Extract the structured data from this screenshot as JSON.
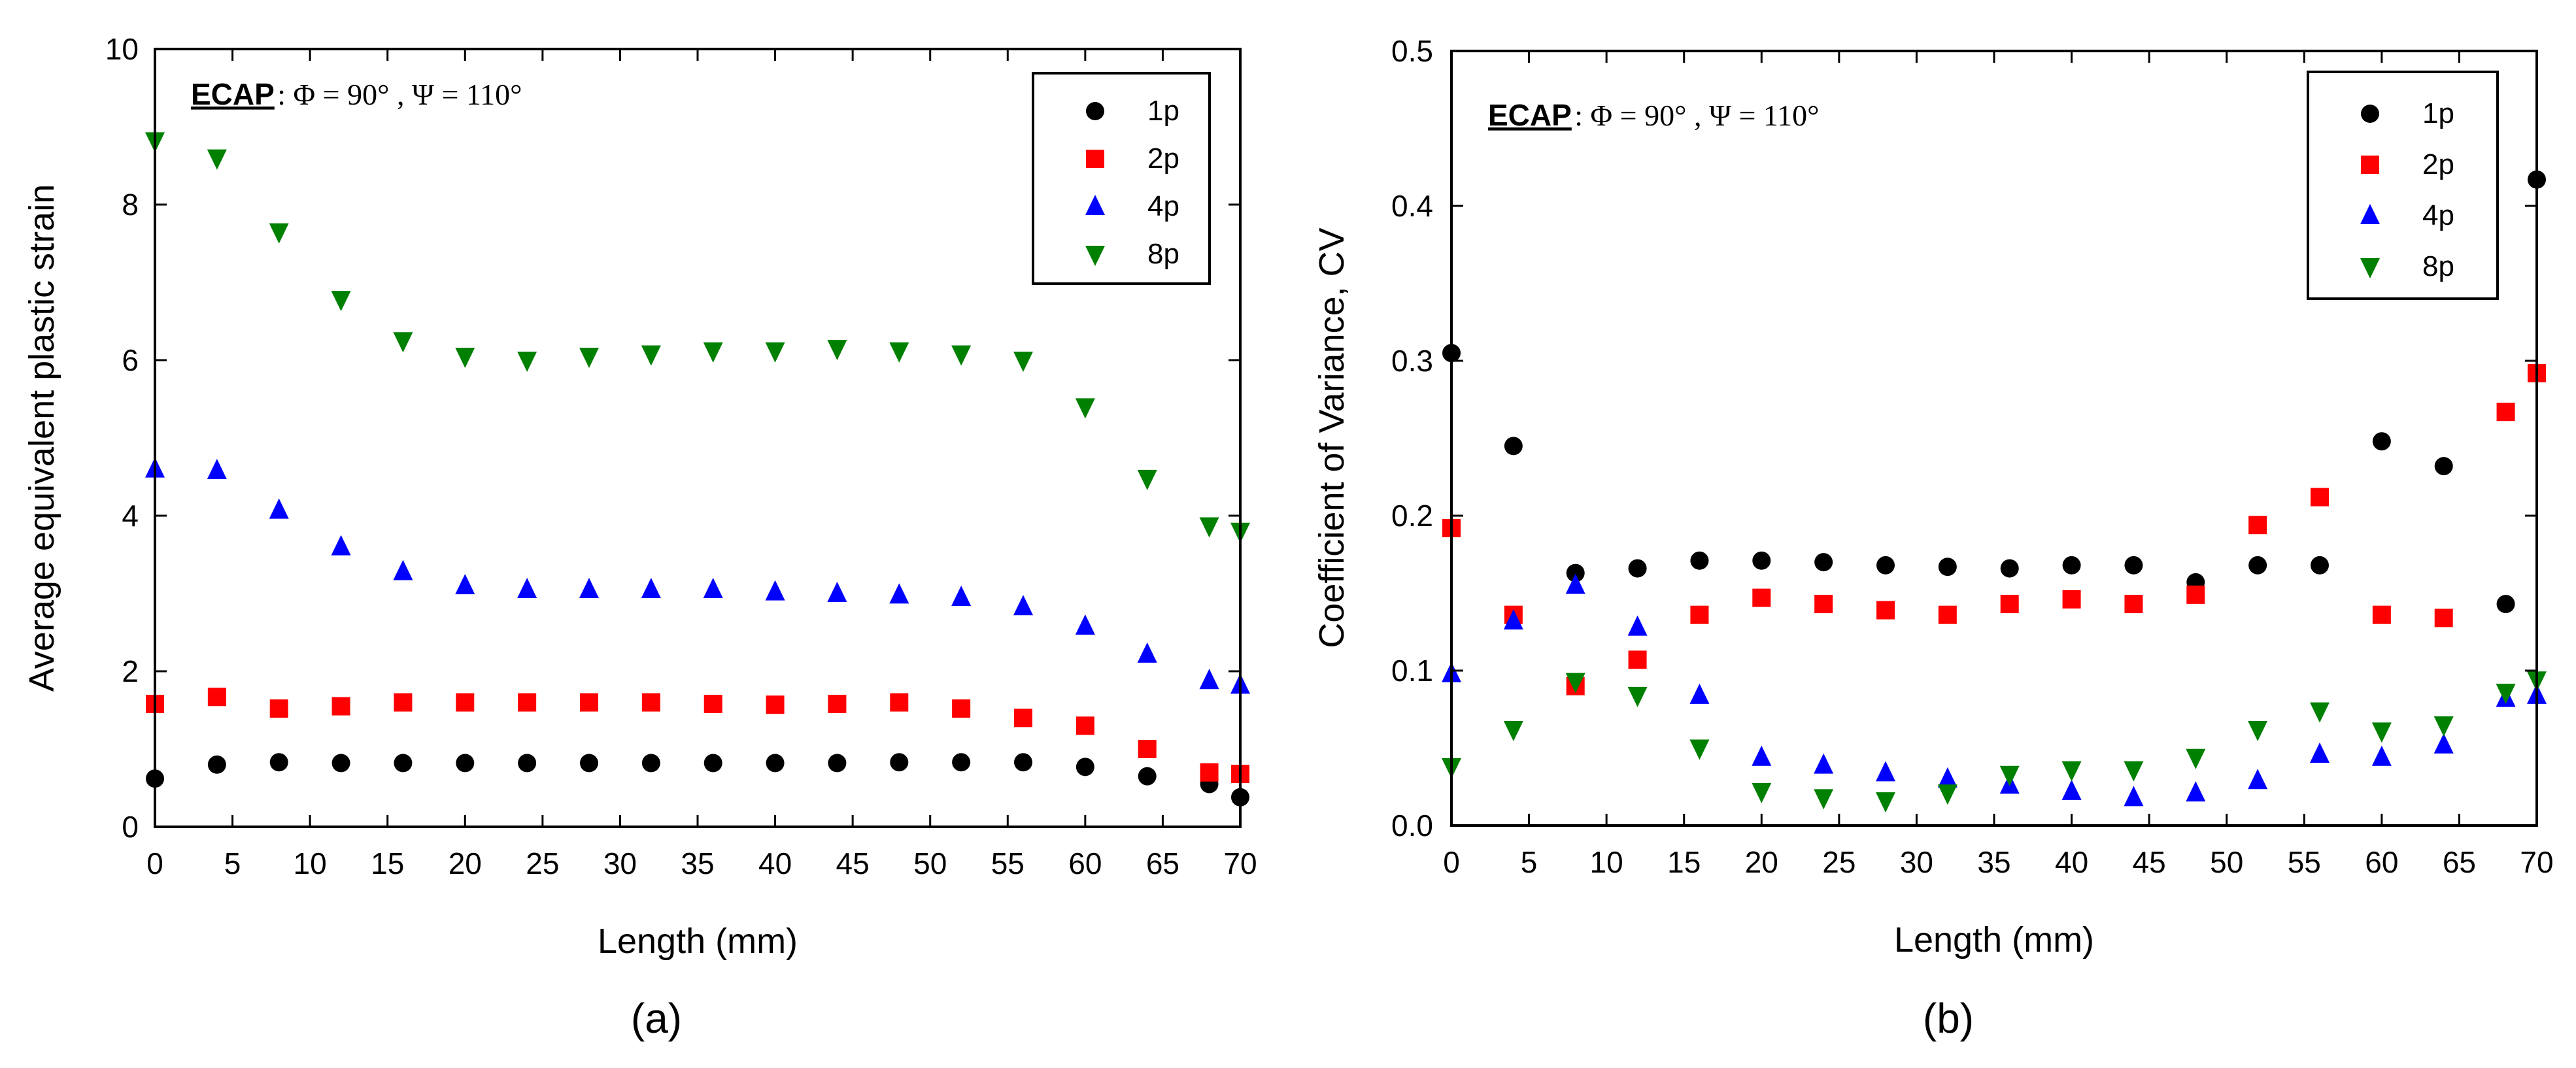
{
  "chart_data": [
    {
      "type": "scatter",
      "panel_label": "(a)",
      "title": "",
      "annotation": {
        "bold": "ECAP",
        "rest": ": Φ = 90° , Ψ = 110°"
      },
      "xlabel": "Length (mm)",
      "ylabel": "Average equivalent plastic strain",
      "xlim": [
        0,
        70
      ],
      "ylim": [
        0,
        10
      ],
      "xticks": [
        0,
        5,
        10,
        15,
        20,
        25,
        30,
        35,
        40,
        45,
        50,
        55,
        60,
        65,
        70
      ],
      "yticks": [
        0,
        2,
        4,
        6,
        8,
        10
      ],
      "legend_position": "top-right",
      "x": [
        0,
        4,
        8,
        12,
        16,
        20,
        24,
        28,
        32,
        36,
        40,
        44,
        48,
        52,
        56,
        60,
        64,
        68,
        70
      ],
      "series": [
        {
          "name": "1p",
          "marker": "circle",
          "color": "#000000",
          "values": [
            0.62,
            0.8,
            0.83,
            0.82,
            0.82,
            0.82,
            0.82,
            0.82,
            0.82,
            0.82,
            0.82,
            0.82,
            0.83,
            0.83,
            0.83,
            0.77,
            0.65,
            0.55,
            0.38
          ]
        },
        {
          "name": "2p",
          "marker": "square",
          "color": "#ff0000",
          "values": [
            1.58,
            1.67,
            1.52,
            1.55,
            1.6,
            1.6,
            1.6,
            1.6,
            1.6,
            1.58,
            1.57,
            1.58,
            1.6,
            1.52,
            1.4,
            1.3,
            1.0,
            0.7,
            0.68
          ]
        },
        {
          "name": "4p",
          "marker": "triangle-up",
          "color": "#0000ff",
          "values": [
            4.6,
            4.58,
            4.07,
            3.6,
            3.28,
            3.1,
            3.05,
            3.05,
            3.05,
            3.05,
            3.02,
            3.0,
            2.98,
            2.95,
            2.83,
            2.58,
            2.22,
            1.88,
            1.82
          ]
        },
        {
          "name": "8p",
          "marker": "triangle-down",
          "color": "#008000",
          "values": [
            8.82,
            8.6,
            7.65,
            6.78,
            6.25,
            6.05,
            6.0,
            6.05,
            6.08,
            6.12,
            6.12,
            6.15,
            6.12,
            6.08,
            6.0,
            5.4,
            4.48,
            3.87,
            3.8
          ]
        }
      ]
    },
    {
      "type": "scatter",
      "panel_label": "(b)",
      "title": "",
      "annotation": {
        "bold": "ECAP",
        "rest": ": Φ = 90° , Ψ = 110°"
      },
      "xlabel": "Length (mm)",
      "ylabel": "Coefficient of Variance, CV",
      "xlim": [
        0,
        70
      ],
      "ylim": [
        0,
        0.5
      ],
      "xticks": [
        0,
        5,
        10,
        15,
        20,
        25,
        30,
        35,
        40,
        45,
        50,
        55,
        60,
        65,
        70
      ],
      "yticks": [
        0.0,
        0.1,
        0.2,
        0.3,
        0.4,
        0.5
      ],
      "ytick_labels": [
        "0.0",
        "0.1",
        "0.2",
        "0.3",
        "0.4",
        "0.5"
      ],
      "legend_position": "top-right",
      "x": [
        0,
        4,
        8,
        12,
        16,
        20,
        24,
        28,
        32,
        36,
        40,
        44,
        48,
        52,
        56,
        60,
        64,
        68,
        70
      ],
      "series": [
        {
          "name": "1p",
          "marker": "circle",
          "color": "#000000",
          "values": [
            0.305,
            0.245,
            0.163,
            0.166,
            0.171,
            0.171,
            0.17,
            0.168,
            0.167,
            0.166,
            0.168,
            0.168,
            0.157,
            0.168,
            0.168,
            0.248,
            0.232,
            0.143,
            0.417
          ]
        },
        {
          "name": "2p",
          "marker": "square",
          "color": "#ff0000",
          "values": [
            0.192,
            0.136,
            0.09,
            0.107,
            0.136,
            0.147,
            0.143,
            0.139,
            0.136,
            0.143,
            0.146,
            0.143,
            0.149,
            0.194,
            0.212,
            0.136,
            0.134,
            0.267,
            0.292
          ]
        },
        {
          "name": "4p",
          "marker": "triangle-up",
          "color": "#0000ff",
          "values": [
            0.098,
            0.132,
            0.155,
            0.128,
            0.084,
            0.044,
            0.039,
            0.034,
            0.03,
            0.026,
            0.022,
            0.018,
            0.021,
            0.029,
            0.046,
            0.044,
            0.052,
            0.082,
            0.084
          ]
        },
        {
          "name": "8p",
          "marker": "triangle-down",
          "color": "#008000",
          "values": [
            0.038,
            0.062,
            0.093,
            0.084,
            0.05,
            0.022,
            0.018,
            0.016,
            0.021,
            0.033,
            0.036,
            0.036,
            0.044,
            0.062,
            0.074,
            0.061,
            0.065,
            0.086,
            0.094
          ]
        }
      ]
    }
  ]
}
